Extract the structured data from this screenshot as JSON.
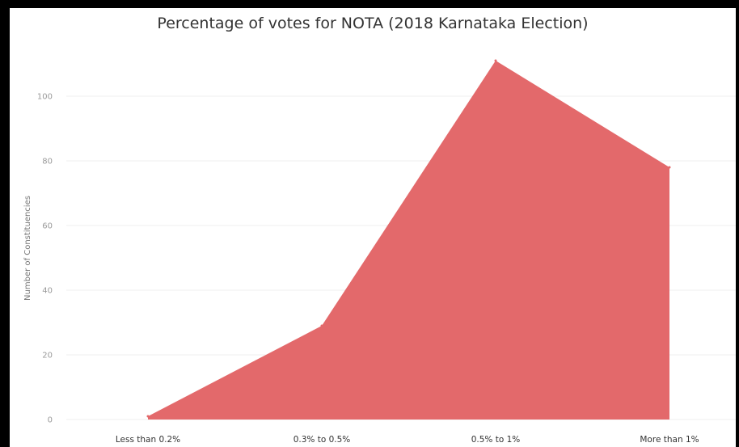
{
  "chart_data": {
    "type": "area",
    "title": "Percentage of votes for NOTA (2018 Karnataka Election)",
    "xlabel": "",
    "ylabel": "Number of Constituencies",
    "categories": [
      "Less than 0.2%",
      "0.3% to 0.5%",
      "0.5% to 1%",
      "More than 1%"
    ],
    "values": [
      1,
      29,
      111,
      78
    ],
    "yticks": [
      0,
      20,
      40,
      60,
      80,
      100
    ],
    "ylim": [
      0,
      115
    ],
    "grid": true,
    "fill_color": "#e3696b"
  }
}
